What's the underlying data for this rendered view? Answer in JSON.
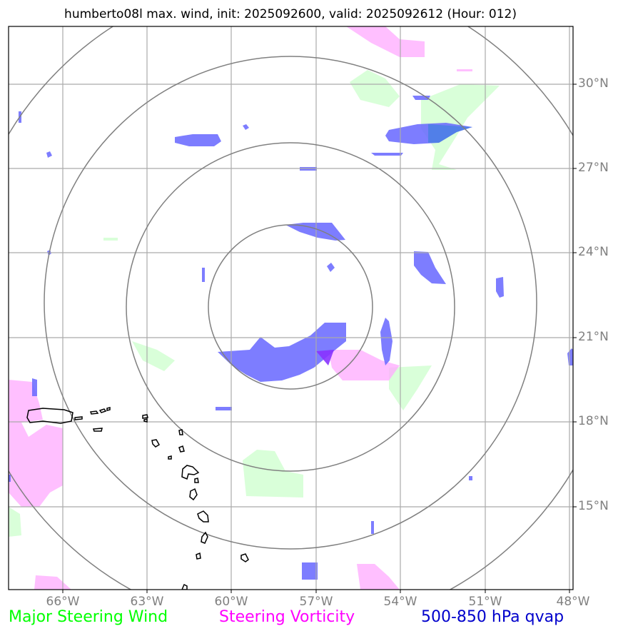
{
  "title": "humberto08l max. wind, init: 2025092600, valid: 2025092612 (Hour: 012)",
  "lat_labels": [
    "30°N",
    "27°N",
    "24°N",
    "21°N",
    "18°N",
    "15°N"
  ],
  "lon_labels": [
    "66°W",
    "63°W",
    "60°W",
    "57°W",
    "54°W",
    "51°W",
    "48°W"
  ],
  "legend": {
    "wind": {
      "label": "Major Steering Wind",
      "color": "#00ff00"
    },
    "vorticity": {
      "label": "Steering Vorticity",
      "color": "#ff00ff"
    },
    "qvap": {
      "label": "500-850 hPa qvap",
      "color": "#0000cc"
    }
  },
  "colors": {
    "grid": "#aaaaaa",
    "rings": "#808080",
    "coast": "#000000",
    "wind_fill": "#ccffcc",
    "vort_fill": "#ffaaff",
    "qvap_fill": "#6666ff"
  }
}
